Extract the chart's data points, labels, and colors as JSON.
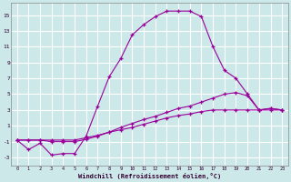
{
  "xlabel": "Windchill (Refroidissement éolien,°C)",
  "background_color": "#cce8e8",
  "grid_color": "#ffffff",
  "line_color": "#990099",
  "xlim": [
    -0.5,
    23.5
  ],
  "ylim": [
    -4,
    16.5
  ],
  "xticks": [
    0,
    1,
    2,
    3,
    4,
    5,
    6,
    7,
    8,
    9,
    10,
    11,
    12,
    13,
    14,
    15,
    16,
    17,
    18,
    19,
    20,
    21,
    22,
    23
  ],
  "yticks": [
    -3,
    -1,
    1,
    3,
    5,
    7,
    9,
    11,
    13,
    15
  ],
  "line1_x": [
    0,
    1,
    2,
    3,
    4,
    5,
    6,
    7,
    8,
    9,
    10,
    11,
    12,
    13,
    14,
    15,
    16,
    17,
    18,
    19,
    20,
    21,
    22,
    23
  ],
  "line1_y": [
    -0.8,
    -2.0,
    -1.2,
    -2.7,
    -2.5,
    -2.5,
    -0.3,
    3.5,
    7.2,
    9.5,
    12.5,
    13.8,
    14.8,
    15.5,
    15.5,
    15.5,
    14.8,
    11,
    8,
    7,
    5,
    3,
    3.2,
    3
  ],
  "line2_x": [
    0,
    1,
    2,
    3,
    4,
    5,
    6,
    7,
    8,
    9,
    10,
    11,
    12,
    13,
    14,
    15,
    16,
    17,
    18,
    19,
    20,
    21,
    22,
    23
  ],
  "line2_y": [
    -0.8,
    -0.8,
    -0.8,
    -1.0,
    -1.0,
    -1.0,
    -0.7,
    -0.3,
    0.2,
    0.8,
    1.3,
    1.8,
    2.2,
    2.7,
    3.2,
    3.5,
    4.0,
    4.5,
    5.0,
    5.2,
    4.8,
    3.0,
    3.2,
    3.0
  ],
  "line3_x": [
    0,
    1,
    2,
    3,
    4,
    5,
    6,
    7,
    8,
    9,
    10,
    11,
    12,
    13,
    14,
    15,
    16,
    17,
    18,
    19,
    20,
    21,
    22,
    23
  ],
  "line3_y": [
    -0.8,
    -0.8,
    -0.8,
    -0.8,
    -0.8,
    -0.8,
    -0.5,
    -0.2,
    0.2,
    0.5,
    0.8,
    1.2,
    1.6,
    2.0,
    2.3,
    2.5,
    2.8,
    3.0,
    3.0,
    3.0,
    3.0,
    3.0,
    3.0,
    3.0
  ]
}
